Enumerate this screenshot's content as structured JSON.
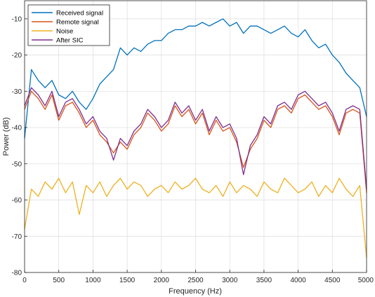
{
  "chart_data": {
    "type": "line",
    "title": "",
    "xlabel": "Frequency (Hz)",
    "ylabel": "Power (dB)",
    "xlim": [
      0,
      5000
    ],
    "ylim": [
      -80,
      -5
    ],
    "xticks": [
      0,
      500,
      1000,
      1500,
      2000,
      2500,
      3000,
      3500,
      4000,
      4500,
      5000
    ],
    "yticks": [
      -80,
      -70,
      -60,
      -50,
      -40,
      -30,
      -20,
      -10
    ],
    "grid": true,
    "legend_location": "top-left",
    "series": [
      {
        "name": "Received signal",
        "color": "#0072BD",
        "x": [
          0,
          100,
          200,
          300,
          400,
          500,
          600,
          700,
          800,
          900,
          1000,
          1100,
          1200,
          1300,
          1400,
          1500,
          1600,
          1700,
          1800,
          1900,
          2000,
          2100,
          2200,
          2300,
          2400,
          2500,
          2600,
          2700,
          2800,
          2900,
          3000,
          3100,
          3200,
          3300,
          3400,
          3500,
          3600,
          3700,
          3800,
          3900,
          4000,
          4100,
          4200,
          4300,
          4400,
          4500,
          4600,
          4700,
          4800,
          4900,
          5000
        ],
        "values": [
          -43,
          -24,
          -27,
          -29,
          -27,
          -31,
          -32,
          -30,
          -33,
          -35,
          -32,
          -28,
          -26,
          -24,
          -18,
          -20,
          -18,
          -19,
          -17,
          -16,
          -16,
          -14,
          -13,
          -13,
          -12,
          -12,
          -11,
          -12,
          -11,
          -10,
          -12,
          -11,
          -14,
          -12,
          -12,
          -13,
          -14,
          -13,
          -12,
          -14,
          -15,
          -13,
          -16,
          -18,
          -17,
          -20,
          -22,
          -25,
          -27,
          -29,
          -37
        ]
      },
      {
        "name": "Remote signal",
        "color": "#D95319",
        "x": [
          0,
          100,
          200,
          300,
          400,
          500,
          600,
          700,
          800,
          900,
          1000,
          1100,
          1200,
          1300,
          1400,
          1500,
          1600,
          1700,
          1800,
          1900,
          2000,
          2100,
          2200,
          2300,
          2400,
          2500,
          2600,
          2700,
          2800,
          2900,
          3000,
          3100,
          3200,
          3300,
          3400,
          3500,
          3600,
          3700,
          3800,
          3900,
          4000,
          4100,
          4200,
          4300,
          4400,
          4500,
          4600,
          4700,
          4800,
          4900,
          5000
        ],
        "values": [
          -35,
          -30,
          -32,
          -35,
          -31,
          -38,
          -34,
          -33,
          -36,
          -40,
          -38,
          -42,
          -44,
          -47,
          -44,
          -46,
          -42,
          -40,
          -36,
          -38,
          -41,
          -39,
          -34,
          -37,
          -35,
          -39,
          -36,
          -42,
          -38,
          -41,
          -40,
          -44,
          -51,
          -46,
          -43,
          -38,
          -40,
          -35,
          -34,
          -36,
          -32,
          -31,
          -33,
          -35,
          -34,
          -37,
          -42,
          -36,
          -35,
          -36,
          -58
        ]
      },
      {
        "name": "Noise",
        "color": "#EDB120",
        "x": [
          0,
          100,
          200,
          300,
          400,
          500,
          600,
          700,
          800,
          900,
          1000,
          1100,
          1200,
          1300,
          1400,
          1500,
          1600,
          1700,
          1800,
          1900,
          2000,
          2100,
          2200,
          2300,
          2400,
          2500,
          2600,
          2700,
          2800,
          2900,
          3000,
          3100,
          3200,
          3300,
          3400,
          3500,
          3600,
          3700,
          3800,
          3900,
          4000,
          4100,
          4200,
          4300,
          4400,
          4500,
          4600,
          4700,
          4800,
          4900,
          5000
        ],
        "values": [
          -68,
          -57,
          -59,
          -55,
          -57,
          -54,
          -58,
          -55,
          -64,
          -56,
          -58,
          -55,
          -59,
          -56,
          -54,
          -57,
          -55,
          -56,
          -59,
          -57,
          -56,
          -58,
          -55,
          -57,
          -56,
          -54,
          -57,
          -58,
          -56,
          -59,
          -55,
          -58,
          -56,
          -57,
          -59,
          -55,
          -57,
          -58,
          -54,
          -56,
          -58,
          -57,
          -55,
          -59,
          -56,
          -58,
          -54,
          -57,
          -59,
          -56,
          -76
        ]
      },
      {
        "name": "After SIC",
        "color": "#7E2F8E",
        "x": [
          0,
          100,
          200,
          300,
          400,
          500,
          600,
          700,
          800,
          900,
          1000,
          1100,
          1200,
          1300,
          1400,
          1500,
          1600,
          1700,
          1800,
          1900,
          2000,
          2100,
          2200,
          2300,
          2400,
          2500,
          2600,
          2700,
          2800,
          2900,
          3000,
          3100,
          3200,
          3300,
          3400,
          3500,
          3600,
          3700,
          3800,
          3900,
          4000,
          4100,
          4200,
          4300,
          4400,
          4500,
          4600,
          4700,
          4800,
          4900,
          5000
        ],
        "values": [
          -34,
          -29,
          -31,
          -34,
          -30,
          -37,
          -33,
          -32,
          -35,
          -39,
          -37,
          -41,
          -43,
          -49,
          -43,
          -45,
          -41,
          -39,
          -35,
          -37,
          -40,
          -38,
          -33,
          -36,
          -34,
          -38,
          -35,
          -41,
          -37,
          -40,
          -39,
          -43,
          -53,
          -45,
          -42,
          -37,
          -39,
          -34,
          -33,
          -35,
          -31,
          -30,
          -32,
          -34,
          -33,
          -36,
          -41,
          -35,
          -34,
          -35,
          -57
        ]
      }
    ]
  }
}
